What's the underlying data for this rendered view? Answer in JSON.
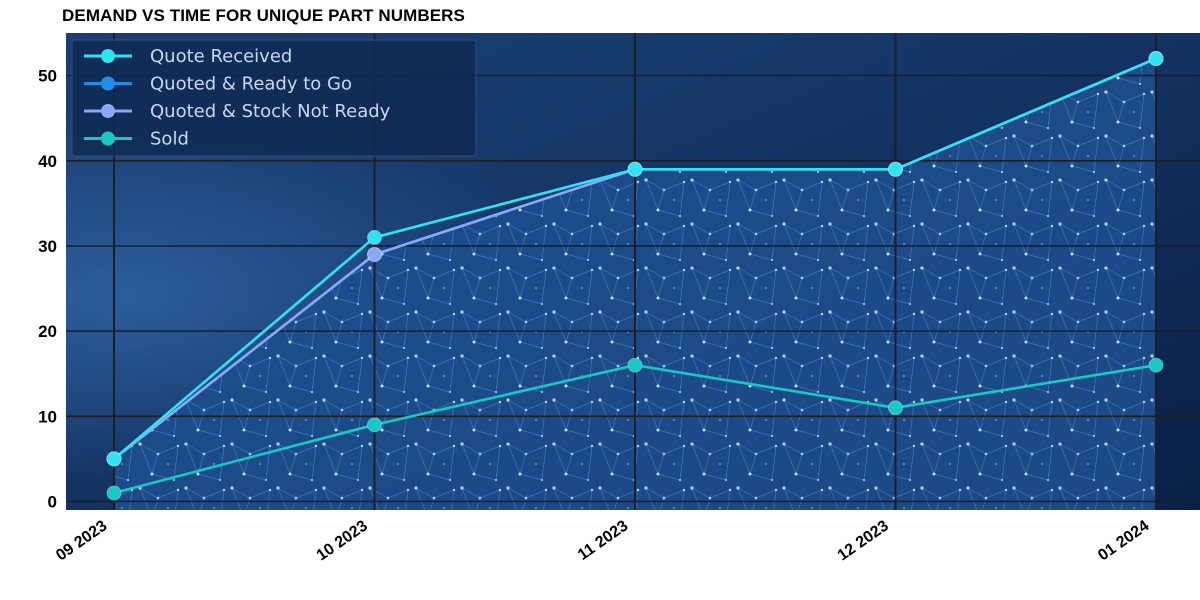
{
  "chart_data": {
    "type": "line",
    "title": "DEMAND VS TIME FOR UNIQUE PART NUMBERS",
    "categories": [
      "09 2023",
      "10 2023",
      "11 2023",
      "12 2023",
      "01 2024"
    ],
    "yticks": [
      0,
      10,
      20,
      30,
      40,
      50
    ],
    "ylim": [
      -1,
      55
    ],
    "grid": true,
    "legend_position": "top-left",
    "series": [
      {
        "name": "Quote Received",
        "values": [
          5,
          31,
          39,
          39,
          52
        ],
        "color": "#2fe3f0"
      },
      {
        "name": "Quoted & Ready to Go",
        "values": [
          5,
          29,
          39,
          39,
          52
        ],
        "color": "#1e90e8"
      },
      {
        "name": "Quoted & Stock Not Ready",
        "values": [
          5,
          29,
          39,
          39,
          52
        ],
        "color": "#8aa8f8"
      },
      {
        "name": "Sold",
        "values": [
          1,
          9,
          16,
          11,
          16
        ],
        "color": "#17c9c4"
      }
    ],
    "area_fill_series": "Quoted & Stock Not Ready"
  }
}
